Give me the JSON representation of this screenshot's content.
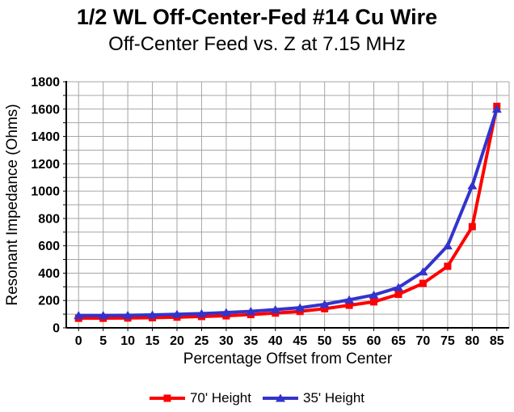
{
  "title": "1/2 WL Off-Center-Fed #14 Cu Wire",
  "subtitle": "Off-Center Feed vs. Z at 7.15 MHz",
  "chart_data": {
    "type": "line",
    "x_categories": [
      "0",
      "5",
      "10",
      "15",
      "20",
      "25",
      "30",
      "35",
      "40",
      "45",
      "50",
      "55",
      "60",
      "65",
      "70",
      "75",
      "80",
      "85"
    ],
    "series": [
      {
        "name": "70' Height",
        "color": "#FF0000",
        "marker": "square",
        "values": [
          70,
          70,
          72,
          74,
          78,
          83,
          88,
          97,
          108,
          120,
          140,
          165,
          190,
          245,
          325,
          450,
          740,
          1620
        ]
      },
      {
        "name": "35' Height",
        "color": "#3333CC",
        "marker": "triangle",
        "values": [
          90,
          90,
          92,
          95,
          99,
          104,
          112,
          121,
          133,
          147,
          172,
          205,
          240,
          295,
          410,
          600,
          1040,
          1600
        ]
      }
    ],
    "xlabel": "Percentage Offset from Center",
    "ylabel": "Resonant Impedance (Ohms)",
    "ylim": [
      0,
      1800
    ],
    "y_tick_labels": [
      0,
      200,
      400,
      600,
      800,
      1000,
      1200,
      1400,
      1600,
      1800
    ],
    "y_gridline_interval": 100,
    "grid": true,
    "legend_position": "bottom",
    "colors": {
      "gridline": "#A6A6A6",
      "axis": "#000000",
      "background": "#FFFFFF",
      "text": "#000000"
    }
  }
}
